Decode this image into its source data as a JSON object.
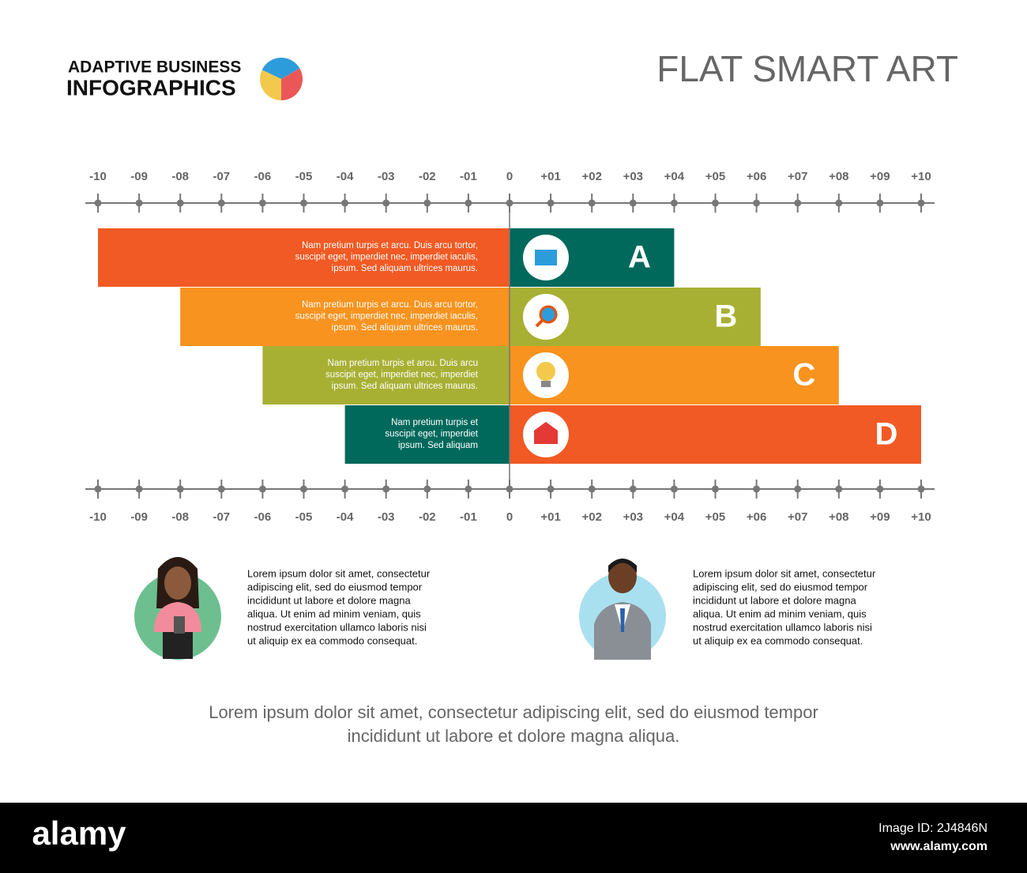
{
  "header": {
    "brand_line1": "ADAPTIVE BUSINESS",
    "brand_line2": "INFOGRAPHICS",
    "title": "FLAT SMART ART"
  },
  "chart_data": {
    "type": "diverging-bar",
    "categories": [
      "A",
      "B",
      "C",
      "D"
    ],
    "series": [
      {
        "colors": [
          "#f15a24",
          "#f7931e",
          "#a8b034",
          "#00695c"
        ],
        "values": [
          -10,
          -8,
          -6,
          -4
        ],
        "annotations": [
          [
            "Nam pretium turpis et arcu. Duis arcu tortor,",
            "suscipit eget, imperdiet nec, imperdiet iaculis,",
            "ipsum. Sed aliquam ultrices maurus."
          ],
          [
            "Nam pretium turpis et arcu. Duis arcu tortor,",
            "suscipit eget, imperdiet nec, imperdiet iaculis,",
            "ipsum. Sed aliquam ultrices maurus."
          ],
          [
            "Nam pretium turpis et arcu. Duis arcu",
            "suscipit eget, imperdiet nec, imperdiet",
            "ipsum. Sed aliquam ultrices maurus."
          ],
          [
            "Nam pretium turpis et",
            "suscipit eget, imperdiet",
            "ipsum. Sed aliquam"
          ]
        ]
      },
      {
        "colors": [
          "#00695c",
          "#a8b034",
          "#f7931e",
          "#f15a24"
        ],
        "values": [
          4,
          6.1,
          8,
          10
        ]
      }
    ],
    "xlim": [
      -10,
      10
    ],
    "xticks": [
      -10,
      {
        "value": -9,
        "label": "-09"
      },
      {
        "value": -8,
        "label": "-08"
      },
      {
        "value": -7,
        "label": "-07"
      },
      {
        "value": -6,
        "label": "-06"
      },
      {
        "value": -5,
        "label": "-05"
      },
      {
        "value": -4,
        "label": "-04"
      },
      {
        "value": -3,
        "label": "-03"
      },
      {
        "value": -2,
        "label": "-02"
      },
      {
        "value": -1,
        "label": "-01"
      },
      0,
      {
        "value": 1,
        "label": "+01"
      },
      {
        "value": 2,
        "label": "+02"
      },
      {
        "value": 3,
        "label": "+03"
      },
      {
        "value": 4,
        "label": "+04"
      },
      {
        "value": 5,
        "label": "+05"
      },
      {
        "value": 6,
        "label": "+06"
      },
      {
        "value": 7,
        "label": "+07"
      },
      {
        "value": 8,
        "label": "+08"
      },
      {
        "value": 9,
        "label": "+09"
      },
      {
        "value": 10,
        "label": "+10"
      }
    ]
  },
  "people": [
    {
      "lines": [
        "Lorem ipsum dolor sit amet, consectetur",
        "adipiscing elit, sed do eiusmod tempor",
        "incididunt ut labore et dolore magna",
        "aliqua. Ut enim ad minim veniam, quis",
        "nostrud exercitation ullamco laboris nisi",
        "ut aliquip ex ea commodo consequat."
      ]
    },
    {
      "lines": [
        "Lorem ipsum dolor sit amet, consectetur",
        "adipiscing elit, sed do eiusmod tempor",
        "incididunt ut labore et dolore magna",
        "aliqua. Ut enim ad minim veniam, quis",
        "nostrud exercitation ullamco laboris nisi",
        "ut aliquip ex ea commodo consequat."
      ]
    }
  ],
  "footer": [
    "Lorem ipsum dolor sit amet, consectetur adipiscing elit, sed do eiusmod tempor",
    "incididunt ut labore et dolore magna aliqua."
  ],
  "banner": {
    "logo": "alamy",
    "image_id": "Image ID: 2J4846N",
    "url": "www.alamy.com"
  }
}
